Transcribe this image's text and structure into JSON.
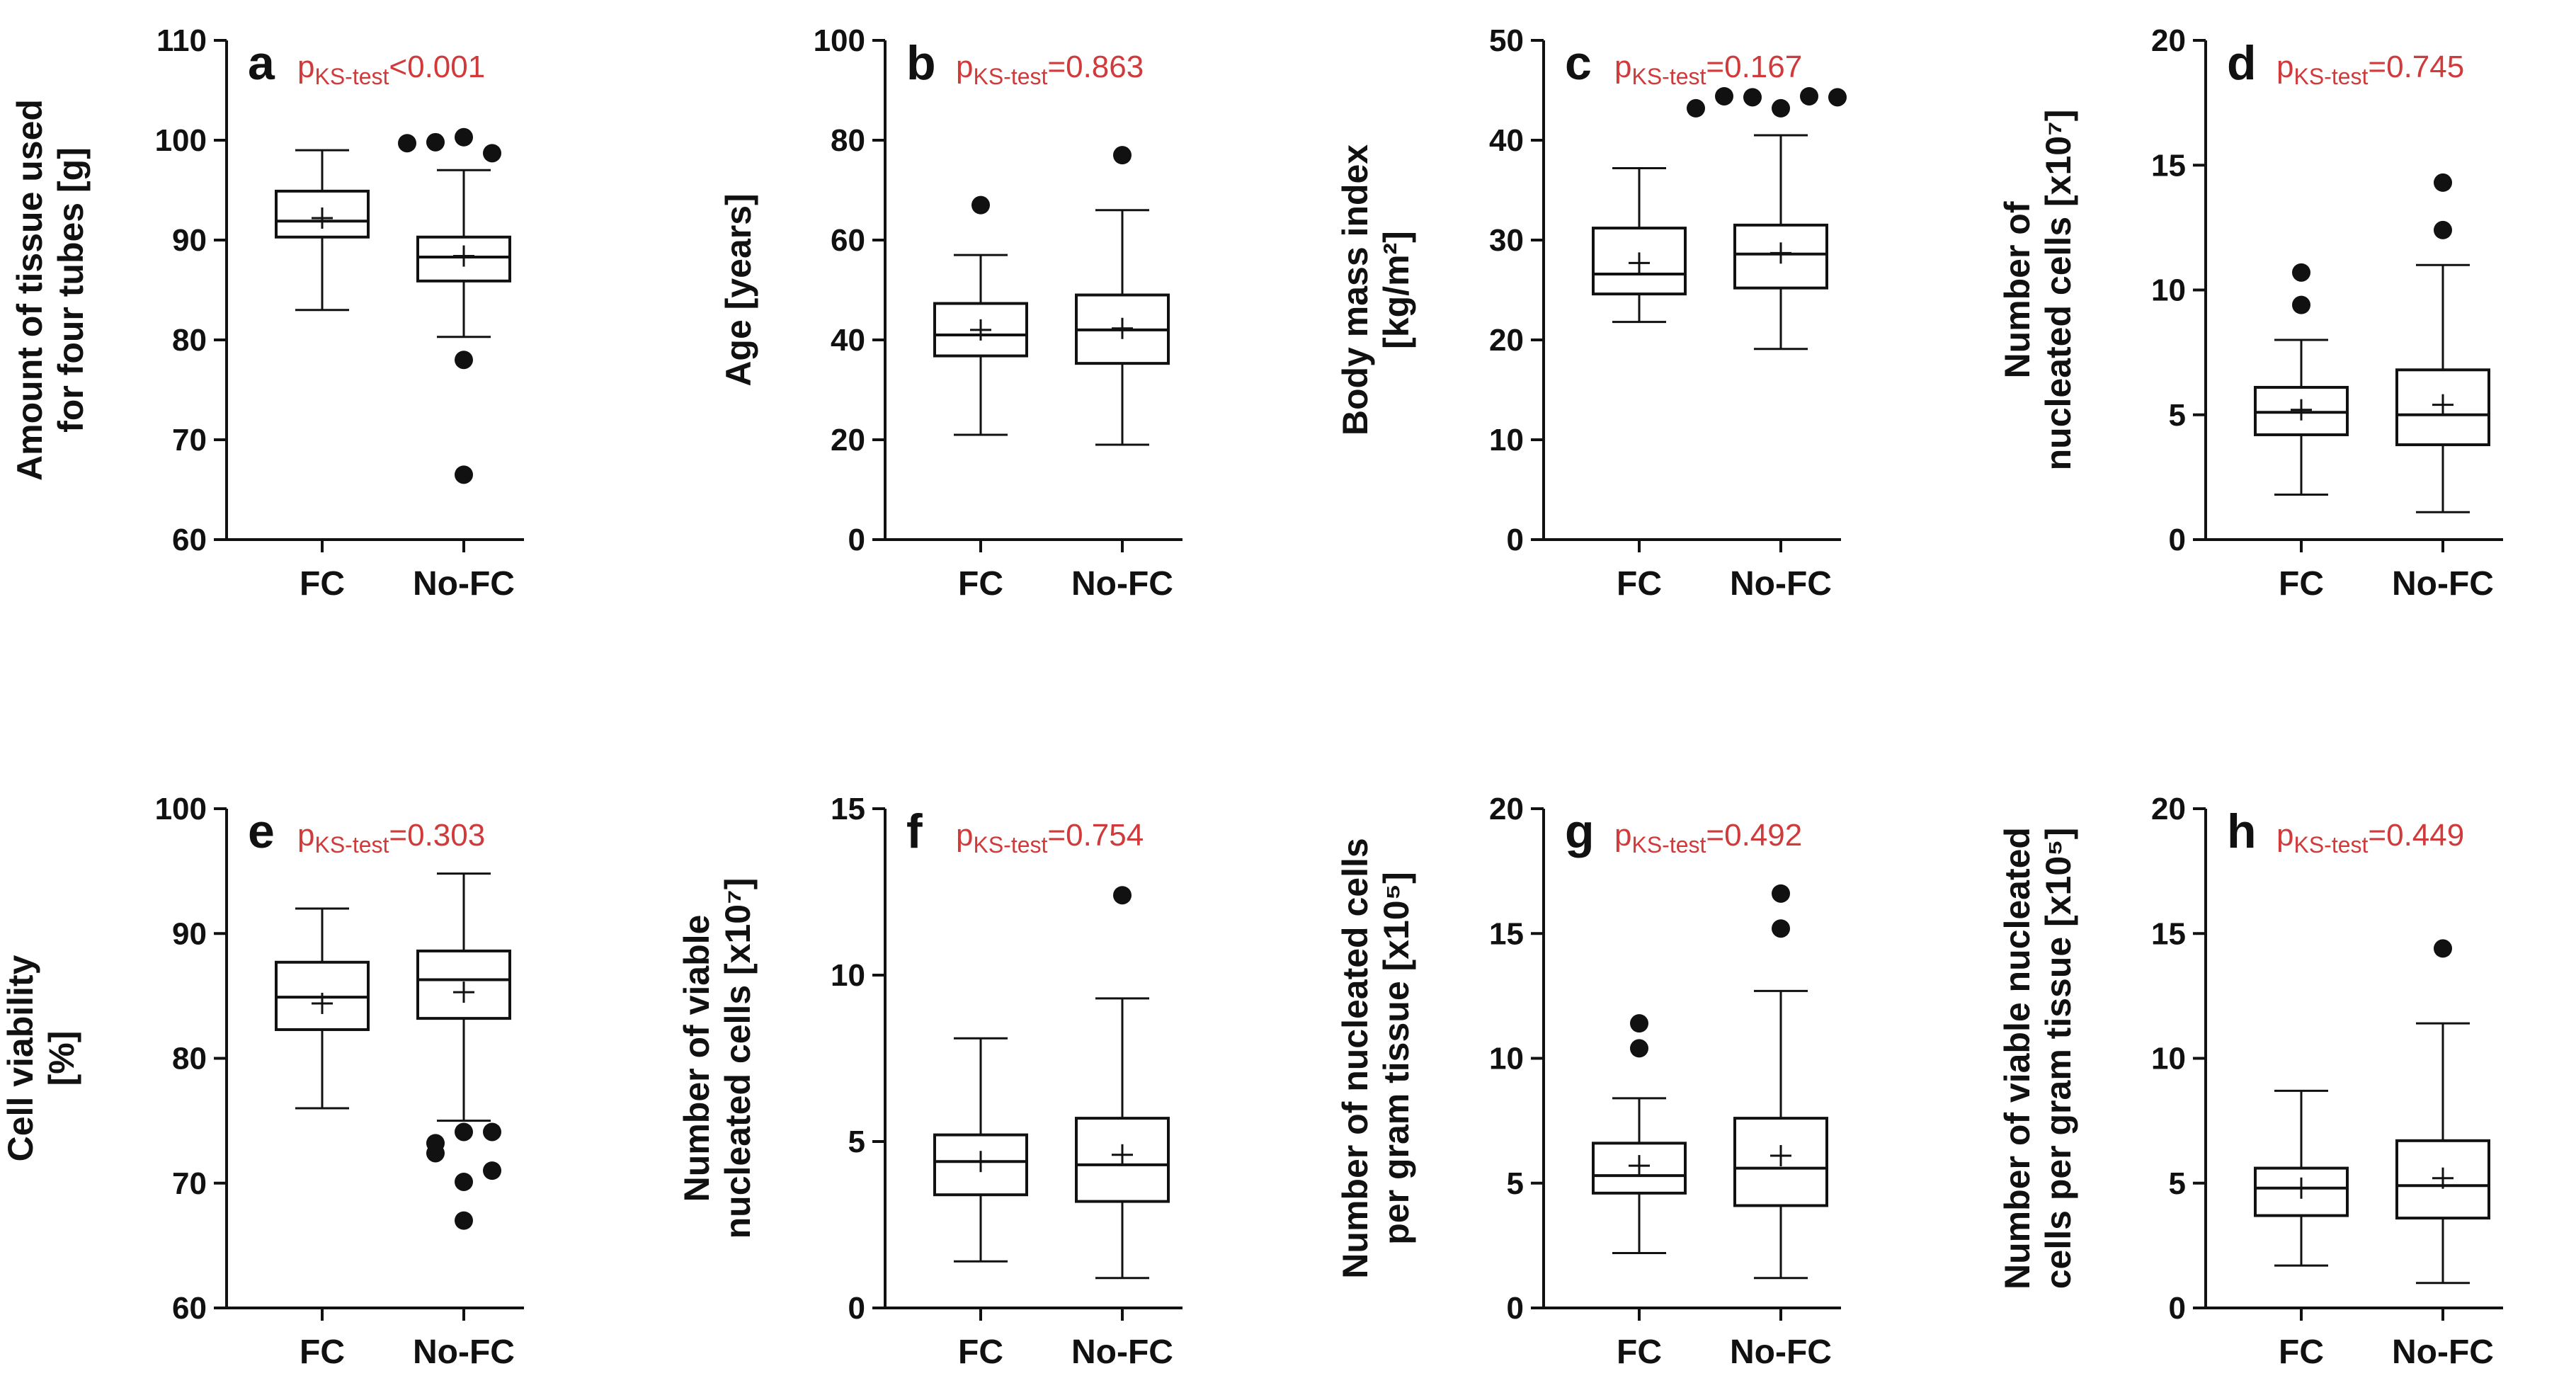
{
  "colors": {
    "ink": "#111111",
    "pvalue": "#d03a3a",
    "box_fill": "#ffffff"
  },
  "chart_data": [
    {
      "type": "box",
      "panel_label": "a",
      "ylabel_lines": [
        "Amount of tissue used",
        "for four tubes [g]"
      ],
      "ylim": [
        60,
        110
      ],
      "yticks": [
        60,
        70,
        80,
        90,
        100,
        110
      ],
      "categories": [
        "FC",
        "No-FC"
      ],
      "pvalue": {
        "p": "p",
        "sub": "KS-test",
        "rest": "<0.001"
      },
      "boxes": [
        {
          "name": "FC",
          "min": 83,
          "q1": 90.3,
          "median": 91.9,
          "q3": 94.9,
          "max": 99,
          "mean": 92.2,
          "outliers": []
        },
        {
          "name": "No-FC",
          "min": 80.3,
          "q1": 85.9,
          "median": 88.3,
          "q3": 90.3,
          "max": 97,
          "mean": 88.4,
          "outliers": [
            100.3,
            99.8,
            98.7,
            99.7,
            78,
            66.5
          ]
        }
      ]
    },
    {
      "type": "box",
      "panel_label": "b",
      "ylabel_lines": [
        "Age [years]"
      ],
      "ylim": [
        0,
        100
      ],
      "yticks": [
        0,
        20,
        40,
        60,
        80,
        100
      ],
      "categories": [
        "FC",
        "No-FC"
      ],
      "pvalue": {
        "p": "p",
        "sub": "KS-test",
        "rest": "=0.863"
      },
      "boxes": [
        {
          "name": "FC",
          "min": 21,
          "q1": 36.8,
          "median": 41,
          "q3": 47.3,
          "max": 57,
          "mean": 42,
          "outliers": [
            67
          ]
        },
        {
          "name": "No-FC",
          "min": 19,
          "q1": 35.3,
          "median": 42,
          "q3": 49,
          "max": 66,
          "mean": 42.3,
          "outliers": [
            77
          ]
        }
      ]
    },
    {
      "type": "box",
      "panel_label": "c",
      "ylabel_lines": [
        "Body mass index",
        "[kg/m²]"
      ],
      "ylim": [
        0,
        50
      ],
      "yticks": [
        0,
        10,
        20,
        30,
        40,
        50
      ],
      "categories": [
        "FC",
        "No-FC"
      ],
      "pvalue": {
        "p": "p",
        "sub": "KS-test",
        "rest": "=0.167"
      },
      "boxes": [
        {
          "name": "FC",
          "min": 21.8,
          "q1": 24.6,
          "median": 26.6,
          "q3": 31.2,
          "max": 37.2,
          "mean": 27.7,
          "outliers": []
        },
        {
          "name": "No-FC",
          "min": 19.1,
          "q1": 25.2,
          "median": 28.6,
          "q3": 31.5,
          "max": 40.5,
          "mean": 28.7,
          "outliers": [
            43.2,
            44.3,
            44.4,
            44.4,
            44.3,
            43.2
          ]
        }
      ]
    },
    {
      "type": "box",
      "panel_label": "d",
      "ylabel_lines": [
        "Number of",
        "nucleated cells [x10⁷]"
      ],
      "ylim": [
        0,
        20
      ],
      "yticks": [
        0,
        5,
        10,
        15,
        20
      ],
      "categories": [
        "FC",
        "No-FC"
      ],
      "pvalue": {
        "p": "p",
        "sub": "KS-test",
        "rest": "=0.745"
      },
      "boxes": [
        {
          "name": "FC",
          "min": 1.8,
          "q1": 4.2,
          "median": 5.1,
          "q3": 6.1,
          "max": 8.0,
          "mean": 5.2,
          "outliers": [
            9.4,
            10.7
          ]
        },
        {
          "name": "No-FC",
          "min": 1.1,
          "q1": 3.8,
          "median": 5.0,
          "q3": 6.8,
          "max": 11.0,
          "mean": 5.4,
          "outliers": [
            12.4,
            14.3
          ]
        }
      ]
    },
    {
      "type": "box",
      "panel_label": "e",
      "ylabel_lines": [
        "Cell viability",
        "[%]"
      ],
      "ylim": [
        60,
        100
      ],
      "yticks": [
        60,
        70,
        80,
        90,
        100
      ],
      "categories": [
        "FC",
        "No-FC"
      ],
      "pvalue": {
        "p": "p",
        "sub": "KS-test",
        "rest": "=0.303"
      },
      "boxes": [
        {
          "name": "FC",
          "min": 76,
          "q1": 82.3,
          "median": 84.9,
          "q3": 87.7,
          "max": 92,
          "mean": 84.4,
          "outliers": []
        },
        {
          "name": "No-FC",
          "min": 75,
          "q1": 83.2,
          "median": 86.3,
          "q3": 88.6,
          "max": 94.8,
          "mean": 85.3,
          "outliers": [
            74.1,
            73.2,
            72.4,
            74.1,
            70.1,
            67,
            71
          ]
        }
      ]
    },
    {
      "type": "box",
      "panel_label": "f",
      "ylabel_lines": [
        "Number of viable",
        "nucleated cells [x10⁷]"
      ],
      "ylim": [
        0,
        15
      ],
      "yticks": [
        0,
        5,
        10,
        15
      ],
      "categories": [
        "FC",
        "No-FC"
      ],
      "pvalue": {
        "p": "p",
        "sub": "KS-test",
        "rest": "=0.754"
      },
      "boxes": [
        {
          "name": "FC",
          "min": 1.4,
          "q1": 3.4,
          "median": 4.4,
          "q3": 5.2,
          "max": 8.1,
          "mean": 4.4,
          "outliers": []
        },
        {
          "name": "No-FC",
          "min": 0.9,
          "q1": 3.2,
          "median": 4.3,
          "q3": 5.7,
          "max": 9.3,
          "mean": 4.6,
          "outliers": [
            12.4
          ]
        }
      ]
    },
    {
      "type": "box",
      "panel_label": "g",
      "ylabel_lines": [
        "Number of nucleated cells",
        "per gram tissue [x10⁵]"
      ],
      "ylim": [
        0,
        20
      ],
      "yticks": [
        0,
        5,
        10,
        15,
        20
      ],
      "categories": [
        "FC",
        "No-FC"
      ],
      "pvalue": {
        "p": "p",
        "sub": "KS-test",
        "rest": "=0.492"
      },
      "boxes": [
        {
          "name": "FC",
          "min": 2.2,
          "q1": 4.6,
          "median": 5.3,
          "q3": 6.6,
          "max": 8.4,
          "mean": 5.7,
          "outliers": [
            10.4,
            11.4
          ]
        },
        {
          "name": "No-FC",
          "min": 1.2,
          "q1": 4.1,
          "median": 5.6,
          "q3": 7.6,
          "max": 12.7,
          "mean": 6.1,
          "outliers": [
            15.2,
            16.6
          ]
        }
      ]
    },
    {
      "type": "box",
      "panel_label": "h",
      "ylabel_lines": [
        "Number of viable nucleated",
        "cells per gram tissue [x10⁵]"
      ],
      "ylim": [
        0,
        20
      ],
      "yticks": [
        0,
        5,
        10,
        15,
        20
      ],
      "categories": [
        "FC",
        "No-FC"
      ],
      "pvalue": {
        "p": "p",
        "sub": "KS-test",
        "rest": "=0.449"
      },
      "boxes": [
        {
          "name": "FC",
          "min": 1.7,
          "q1": 3.7,
          "median": 4.8,
          "q3": 5.6,
          "max": 8.7,
          "mean": 4.8,
          "outliers": []
        },
        {
          "name": "No-FC",
          "min": 1.0,
          "q1": 3.6,
          "median": 4.9,
          "q3": 6.7,
          "max": 11.4,
          "mean": 5.2,
          "outliers": [
            14.4
          ]
        }
      ]
    }
  ]
}
